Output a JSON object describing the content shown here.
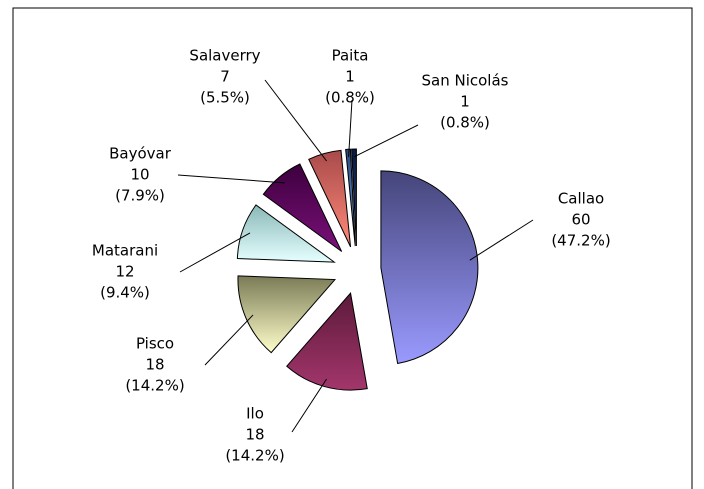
{
  "chart_data": {
    "type": "pie",
    "categories": [
      "Callao",
      "Ilo",
      "Pisco",
      "Matarani",
      "Bayóvar",
      "Salaverry",
      "Paita",
      "San Nicolás"
    ],
    "values": [
      60,
      18,
      18,
      12,
      10,
      7,
      1,
      1
    ],
    "share_labels": [
      "(47.2%)",
      "(14.2%)",
      "(14.2%)",
      "(9.4%)",
      "(7.9%)",
      "(5.5%)",
      "(0.8%)",
      "(0.8%)"
    ],
    "colors": [
      [
        "#45457a",
        "#9a9aff"
      ],
      [
        "#5c1a3a",
        "#a3366c"
      ],
      [
        "#7a7a55",
        "#ffffcc"
      ],
      [
        "#8ab8b8",
        "#e6ffff"
      ],
      [
        "#3d003d",
        "#7a107a"
      ],
      [
        "#a84a4a",
        "#ff8a7a"
      ],
      [
        "#2a4a80",
        "#6f9ad8"
      ],
      [
        "#0a1a40",
        "#27407a"
      ]
    ]
  }
}
